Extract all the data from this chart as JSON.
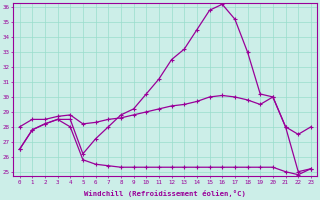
{
  "xlabel": "Windchill (Refroidissement éolien,°C)",
  "background_color": "#cceee8",
  "grid_color": "#99ddcc",
  "line_color": "#990099",
  "x": [
    0,
    1,
    2,
    3,
    4,
    5,
    6,
    7,
    8,
    9,
    10,
    11,
    12,
    13,
    14,
    15,
    16,
    17,
    18,
    19,
    20,
    21,
    22,
    23
  ],
  "line_top": [
    28.0,
    28.5,
    28.5,
    28.7,
    28.8,
    28.2,
    28.3,
    28.5,
    28.6,
    28.8,
    29.0,
    29.2,
    29.4,
    29.5,
    29.7,
    30.0,
    30.1,
    30.0,
    29.8,
    29.5,
    30.0,
    28.0,
    27.5,
    28.0
  ],
  "line_mid": [
    26.5,
    27.8,
    28.2,
    28.5,
    28.5,
    26.2,
    27.2,
    28.0,
    28.8,
    29.2,
    30.2,
    31.2,
    32.5,
    33.2,
    34.5,
    35.8,
    36.2,
    35.2,
    33.0,
    30.2,
    30.0,
    28.0,
    25.0,
    25.2
  ],
  "line_bot": [
    26.5,
    27.8,
    28.2,
    28.5,
    28.0,
    25.8,
    25.5,
    25.4,
    25.3,
    25.3,
    25.3,
    25.3,
    25.3,
    25.3,
    25.3,
    25.3,
    25.3,
    25.3,
    25.3,
    25.3,
    25.3,
    25.0,
    24.8,
    25.2
  ],
  "ylim_min": 25,
  "ylim_max": 36,
  "xlim_min": 0,
  "xlim_max": 23,
  "yticks": [
    25,
    26,
    27,
    28,
    29,
    30,
    31,
    32,
    33,
    34,
    35,
    36
  ],
  "xticks": [
    0,
    1,
    2,
    3,
    4,
    5,
    6,
    7,
    8,
    9,
    10,
    11,
    12,
    13,
    14,
    15,
    16,
    17,
    18,
    19,
    20,
    21,
    22,
    23
  ]
}
